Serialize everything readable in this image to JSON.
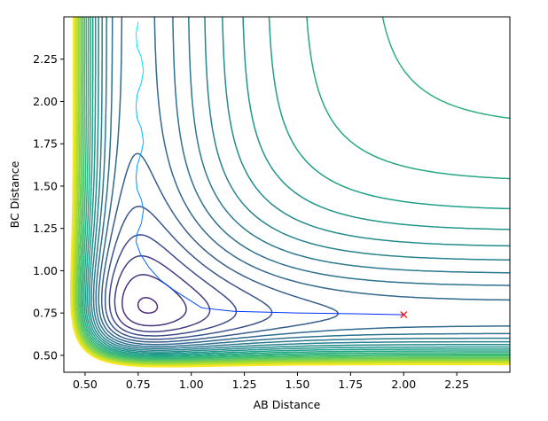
{
  "chart_data": {
    "type": "contour",
    "xlabel": "AB Distance",
    "ylabel": "BC Distance",
    "xlim": [
      0.4,
      2.5
    ],
    "ylim": [
      0.4,
      2.5
    ],
    "x_ticks": [
      "0.50",
      "0.75",
      "1.00",
      "1.25",
      "1.50",
      "1.75",
      "2.00",
      "2.25"
    ],
    "y_ticks": [
      "0.50",
      "0.75",
      "1.00",
      "1.25",
      "1.50",
      "1.75",
      "2.00",
      "2.25"
    ],
    "colormap": "viridis",
    "series": [
      {
        "type": "trajectory",
        "color_map": "cool (cyan to blue)",
        "points": [
          [
            2.0,
            0.74
          ],
          [
            1.8,
            0.745
          ],
          [
            1.5,
            0.75
          ],
          [
            1.2,
            0.76
          ],
          [
            1.05,
            0.78
          ],
          [
            1.0,
            0.82
          ],
          [
            0.95,
            0.86
          ],
          [
            0.9,
            0.9
          ],
          [
            0.85,
            0.95
          ],
          [
            0.8,
            1.02
          ],
          [
            0.76,
            1.1
          ],
          [
            0.74,
            1.17
          ],
          [
            0.745,
            1.22
          ],
          [
            0.765,
            1.28
          ],
          [
            0.775,
            1.36
          ],
          [
            0.765,
            1.42
          ],
          [
            0.745,
            1.48
          ],
          [
            0.74,
            1.55
          ],
          [
            0.745,
            1.62
          ],
          [
            0.765,
            1.7
          ],
          [
            0.775,
            1.76
          ],
          [
            0.765,
            1.84
          ],
          [
            0.745,
            1.9
          ],
          [
            0.74,
            1.97
          ],
          [
            0.745,
            2.04
          ],
          [
            0.765,
            2.11
          ],
          [
            0.775,
            2.18
          ],
          [
            0.765,
            2.26
          ],
          [
            0.745,
            2.32
          ],
          [
            0.74,
            2.4
          ],
          [
            0.75,
            2.47
          ]
        ]
      },
      {
        "type": "marker",
        "symbol": "x",
        "color": "#ff0000",
        "points": [
          [
            2.0,
            0.74
          ]
        ]
      }
    ]
  }
}
